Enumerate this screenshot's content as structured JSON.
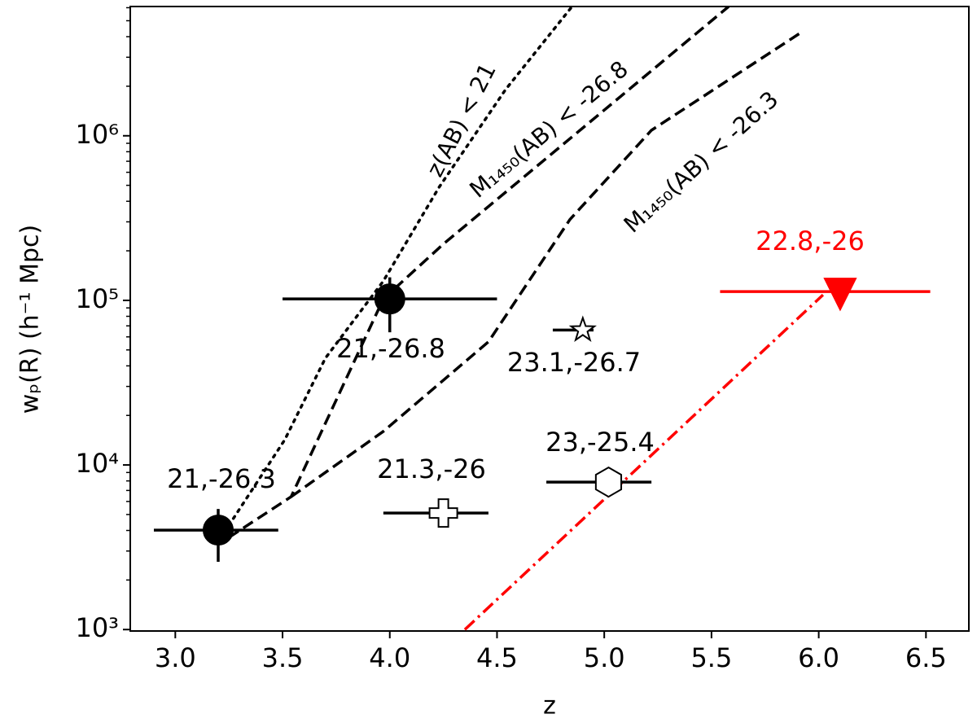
{
  "chart_data": {
    "type": "scatter",
    "xlabel": "z",
    "ylabel": "wₚ(R) (h⁻¹ Mpc)",
    "log_y": true,
    "xlim": [
      2.79,
      6.7
    ],
    "ylim": [
      980,
      6100000
    ],
    "xticks": [
      {
        "value": 3,
        "label": "3.0"
      },
      3.5,
      {
        "value": 4,
        "label": "4.0"
      },
      4.5,
      {
        "value": 5,
        "label": "5.0"
      },
      5.5,
      {
        "value": 6,
        "label": "6.0"
      },
      6.5
    ],
    "yticks": [
      {
        "value": 1000,
        "label": "10³"
      },
      {
        "value": 10000,
        "label": "10⁴"
      },
      {
        "value": 100000,
        "label": "10⁵"
      },
      {
        "value": 1000000,
        "label": "10⁶"
      }
    ],
    "yminorticks": [
      2000,
      3000,
      4000,
      5000,
      6000,
      7000,
      8000,
      9000,
      20000,
      30000,
      40000,
      50000,
      60000,
      70000,
      80000,
      90000,
      200000,
      300000,
      400000,
      500000,
      600000,
      700000,
      800000,
      900000,
      2000000,
      3000000,
      4000000,
      5000000,
      6000000
    ],
    "points": [
      {
        "label": "21,-26.3",
        "x": 3.2,
        "y": 4020,
        "xmin": 2.9,
        "xmax": 3.48,
        "ymin": 2580,
        "ymax": 5400,
        "marker": "circle",
        "filled": true,
        "color": "#000000"
      },
      {
        "label": "21,-26.8",
        "x": 4.0,
        "y": 102000,
        "xmin": 3.5,
        "xmax": 4.5,
        "ymin": 64000,
        "ymax": 138000,
        "marker": "circle",
        "filled": true,
        "color": "#000000"
      },
      {
        "label": "21.3,-26",
        "x": 4.25,
        "y": 5100,
        "xmin": 3.97,
        "xmax": 4.46,
        "marker": "plus",
        "filled": false,
        "color": "#000000"
      },
      {
        "label": "23.1,-26.7",
        "x": 4.9,
        "y": 66000,
        "xmin": 4.76,
        "xmax": 4.95,
        "marker": "star",
        "filled": false,
        "color": "#000000"
      },
      {
        "label": "23,-25.4",
        "x": 5.02,
        "y": 7870,
        "xmin": 4.73,
        "xmax": 5.22,
        "marker": "hexagon",
        "filled": false,
        "color": "#000000"
      },
      {
        "label": "22.8,-26",
        "x": 6.1,
        "y": 113000,
        "xmin": 5.54,
        "xmax": 6.52,
        "marker": "triangle-down",
        "filled": true,
        "color": "#ff0000"
      }
    ],
    "lines": [
      {
        "style": "dotted",
        "color": "#000000",
        "x": [
          3.25,
          3.51,
          3.7,
          3.97,
          4.23,
          4.54,
          4.85
        ],
        "y": [
          4300,
          14200,
          44600,
          131000,
          487000,
          1910000,
          6100000
        ]
      },
      {
        "style": "dashed",
        "color": "#000000",
        "x": [
          3.25,
          3.54,
          3.97,
          4.25,
          5.58
        ],
        "y": [
          3630,
          6410,
          102000,
          220000,
          6100000
        ]
      },
      {
        "style": "dashed",
        "color": "#000000",
        "x": [
          3.54,
          3.97,
          4.46,
          4.84,
          5.22,
          5.92
        ],
        "y": [
          6410,
          16000,
          56000,
          310000,
          1080000,
          4260000
        ]
      },
      {
        "style": "dashdot",
        "color": "#ff0000",
        "x": [
          4.35,
          6.02
        ],
        "y": [
          1000,
          108000
        ]
      }
    ],
    "annotations": [
      "z(AB) < 21",
      "M₁₄₅₀(AB) < -26.8",
      "M₁₄₅₀(AB) < -26.3"
    ]
  }
}
